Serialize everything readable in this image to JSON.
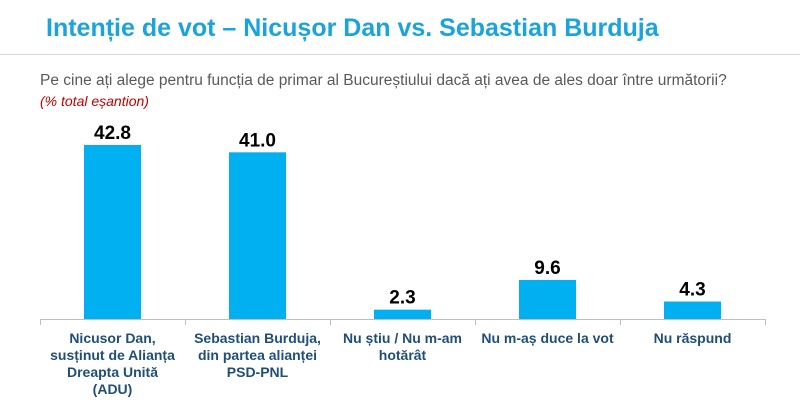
{
  "header": {
    "title": "Intenție de vot – Nicușor Dan vs. Sebastian Burduja",
    "question": "Pe cine ați alege pentru funcția de primar al Bucureștiului dacă ați avea de ales doar între următorii?",
    "subtitle": "(% total eșantion)"
  },
  "colors": {
    "title": "#1aa3dc",
    "bar": "#00b0f0",
    "category_text": "#1f4e79",
    "subtitle": "#c00000"
  },
  "chart_data": {
    "type": "bar",
    "categories": [
      [
        "Nicusor Dan,",
        "susținut de Alianța",
        "Dreapta Unită",
        "(ADU)"
      ],
      [
        "Sebastian Burduja,",
        "din partea alianței",
        "PSD-PNL"
      ],
      [
        "Nu știu / Nu m-am",
        "hotărât"
      ],
      [
        "Nu m-aș duce la vot"
      ],
      [
        "Nu răspund"
      ]
    ],
    "values": [
      42.8,
      41.0,
      2.3,
      9.6,
      4.3
    ],
    "value_labels": [
      "42.8",
      "41.0",
      "2.3",
      "9.6",
      "4.3"
    ],
    "ylim": [
      0,
      45
    ],
    "grid": false,
    "legend": "none"
  }
}
